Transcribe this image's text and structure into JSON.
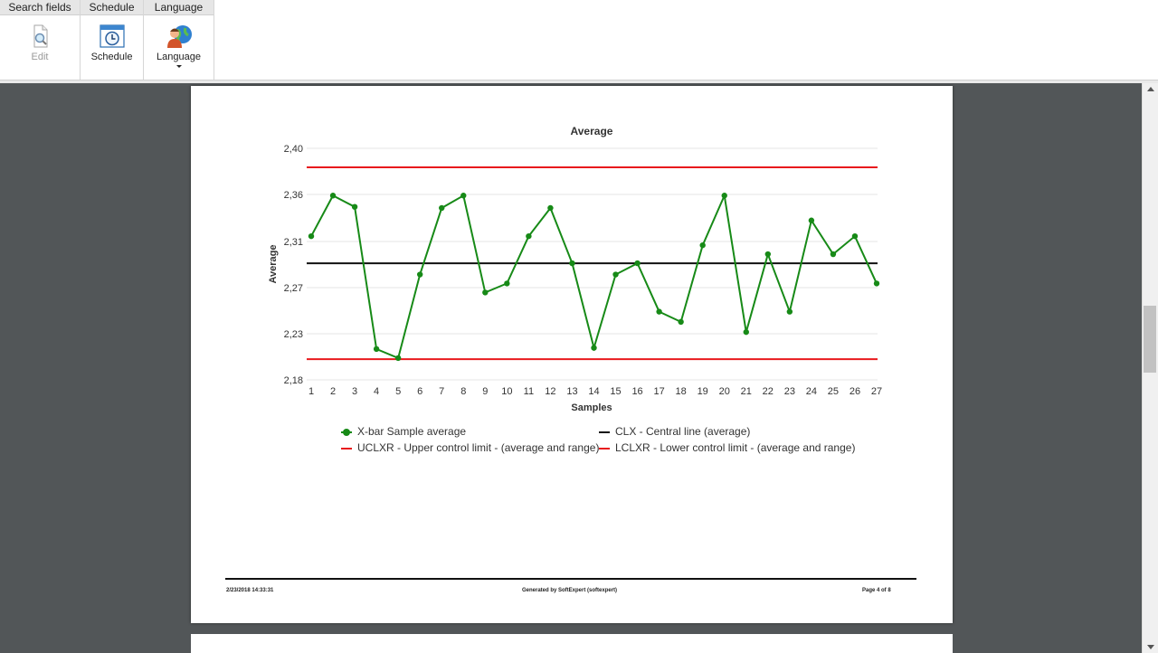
{
  "ribbon": {
    "groups": [
      {
        "header": "Search fields",
        "button_label": "Edit",
        "icon": "edit-search-icon",
        "enabled": false
      },
      {
        "header": "Schedule",
        "button_label": "Schedule",
        "icon": "clock-window-icon",
        "enabled": true
      },
      {
        "header": "Language",
        "button_label": "Language",
        "icon": "user-globe-icon",
        "enabled": true,
        "has_dropdown": true
      }
    ]
  },
  "footer": {
    "timestamp": "2/23/2018 14:33:31",
    "generated_by": "Generated by SoftExpert (softexpert)",
    "page": "Page 4 of 8"
  },
  "colors": {
    "series": "#178a17",
    "central_line": "#111111",
    "control_limits": "#e8191d",
    "viewer_background": "#525658"
  },
  "chart_data": {
    "type": "line",
    "title": "Average",
    "xlabel": "Samples",
    "ylabel": "Average",
    "y_ticks": [
      "2,40",
      "2,36",
      "2,31",
      "2,27",
      "2,23",
      "2,18"
    ],
    "x": [
      1,
      2,
      3,
      4,
      5,
      6,
      7,
      8,
      9,
      10,
      11,
      12,
      13,
      14,
      15,
      16,
      17,
      18,
      19,
      20,
      21,
      22,
      23,
      24,
      25,
      26,
      27
    ],
    "ylim": [
      2.18,
      2.4
    ],
    "grid": true,
    "legend_position": "bottom",
    "series": [
      {
        "name": "X-bar Sample average",
        "style": "line-markers",
        "values": [
          2.3165,
          2.3551,
          2.3444,
          2.2093,
          2.2007,
          2.2801,
          2.3433,
          2.3551,
          2.263,
          2.2716,
          2.3165,
          2.3433,
          2.2908,
          2.2104,
          2.2801,
          2.2908,
          2.2448,
          2.2351,
          2.3079,
          2.3551,
          2.2254,
          2.2994,
          2.2448,
          2.3315,
          2.2994,
          2.3165,
          2.2716
        ]
      },
      {
        "name": "CLX - Central line (average)",
        "style": "hline",
        "value": 2.2908
      },
      {
        "name": "UCLXR - Upper control limit - (average and range)",
        "style": "hline",
        "value": 2.3819
      },
      {
        "name": "LCLXR - Lower control limit - (average and range)",
        "style": "hline",
        "value": 2.1997
      }
    ]
  }
}
